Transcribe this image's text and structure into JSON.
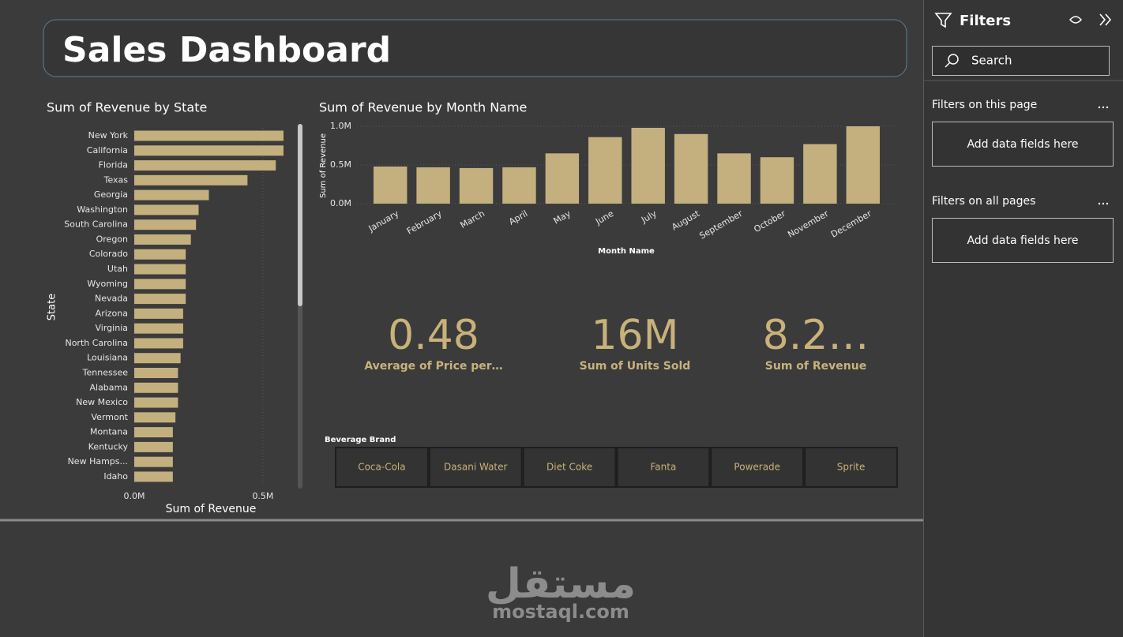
{
  "header": {
    "title": "Sales Dashboard"
  },
  "chart_data": [
    {
      "type": "bar",
      "orientation": "horizontal",
      "title": "Sum of Revenue by State",
      "categories": [
        "New York",
        "California",
        "Florida",
        "Texas",
        "Georgia",
        "Washington",
        "South Carolina",
        "Oregon",
        "Colorado",
        "Utah",
        "Wyoming",
        "Nevada",
        "Arizona",
        "Virginia",
        "North Carolina",
        "Louisiana",
        "Tennessee",
        "Alabama",
        "New Mexico",
        "Vermont",
        "Montana",
        "Kentucky",
        "New Hamps...",
        "Idaho"
      ],
      "values": [
        580000,
        580000,
        550000,
        440000,
        290000,
        250000,
        240000,
        220000,
        200000,
        200000,
        200000,
        200000,
        190000,
        190000,
        190000,
        180000,
        170000,
        170000,
        170000,
        160000,
        150000,
        150000,
        150000,
        150000
      ],
      "color": "#c4b07e",
      "xlim": [
        0,
        580000
      ],
      "xticks": [
        {
          "value": 0,
          "label": "0.0M"
        },
        {
          "value": 500000,
          "label": "0.5M"
        }
      ],
      "x_label": "Sum of Revenue",
      "y_label": "State",
      "grid": true
    },
    {
      "type": "bar",
      "orientation": "vertical",
      "title": "Sum of Revenue by Month Name",
      "categories": [
        "January",
        "February",
        "March",
        "April",
        "May",
        "June",
        "July",
        "August",
        "September",
        "October",
        "November",
        "December"
      ],
      "values": [
        480000,
        470000,
        460000,
        470000,
        650000,
        860000,
        980000,
        900000,
        650000,
        600000,
        770000,
        1000000
      ],
      "color": "#c4b07e",
      "ylim": [
        0,
        1000000
      ],
      "yticks": [
        {
          "value": 0,
          "label": "0.0M"
        },
        {
          "value": 500000,
          "label": "0.5M"
        },
        {
          "value": 1000000,
          "label": "1.0M"
        }
      ],
      "x_label": "Month Name",
      "y_label": "Sum of Revenue",
      "grid": true
    }
  ],
  "cards": [
    {
      "value": "0.48",
      "label": "Average of Price per…"
    },
    {
      "value": "16M",
      "label": "Sum of Units Sold"
    },
    {
      "value": "8.2…",
      "label": "Sum of Revenue"
    }
  ],
  "slicer": {
    "title": "Beverage Brand",
    "items": [
      "Coca-Cola",
      "Dasani Water",
      "Diet Coke",
      "Fanta",
      "Powerade",
      "Sprite"
    ]
  },
  "filters_pane": {
    "title": "Filters",
    "search": "Search",
    "sections": [
      {
        "title": "Filters on this page",
        "placeholder": "Add data fields here"
      },
      {
        "title": "Filters on all pages",
        "placeholder": "Add data fields here"
      }
    ]
  },
  "watermark": {
    "logo": "مستقل",
    "url": "mostaql.com"
  }
}
